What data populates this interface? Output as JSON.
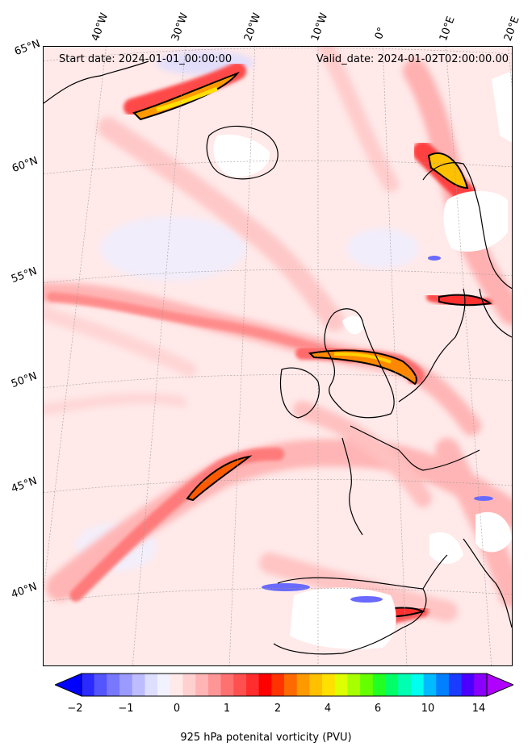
{
  "map": {
    "title_left": "Start date: 2024-01-01_00:00:00",
    "title_right": "Valid_date: 2024-01-02T02:00:00.00",
    "lon_labels": [
      "40°W",
      "30°W",
      "20°W",
      "10°W",
      "0°",
      "10°E",
      "20°E"
    ],
    "lat_labels": [
      "65°N",
      "60°N",
      "55°N",
      "50°N",
      "45°N",
      "40°N"
    ]
  },
  "colorbar": {
    "label": "925 hPa potenital vorticity (PVU)",
    "ticks": [
      "−2",
      "−1",
      "0",
      "1",
      "2",
      "4",
      "6",
      "10",
      "14"
    ],
    "colors": [
      "#0000ff",
      "#2a2aff",
      "#5555ff",
      "#7878ff",
      "#9a9aff",
      "#bcbcff",
      "#dedeff",
      "#f2f2ff",
      "#ffe9e9",
      "#ffd0d0",
      "#ffb5b5",
      "#ff9696",
      "#ff7070",
      "#ff5050",
      "#ff2d2d",
      "#ff0000",
      "#ff3300",
      "#ff6a00",
      "#ff9900",
      "#ffc000",
      "#ffe000",
      "#ddff00",
      "#a8ff00",
      "#66ff00",
      "#22ff22",
      "#00ff66",
      "#00ffb0",
      "#00ffee",
      "#00bbff",
      "#0080ff",
      "#1a3cff",
      "#4b00ff",
      "#8a00ff",
      "#b000ff"
    ]
  }
}
